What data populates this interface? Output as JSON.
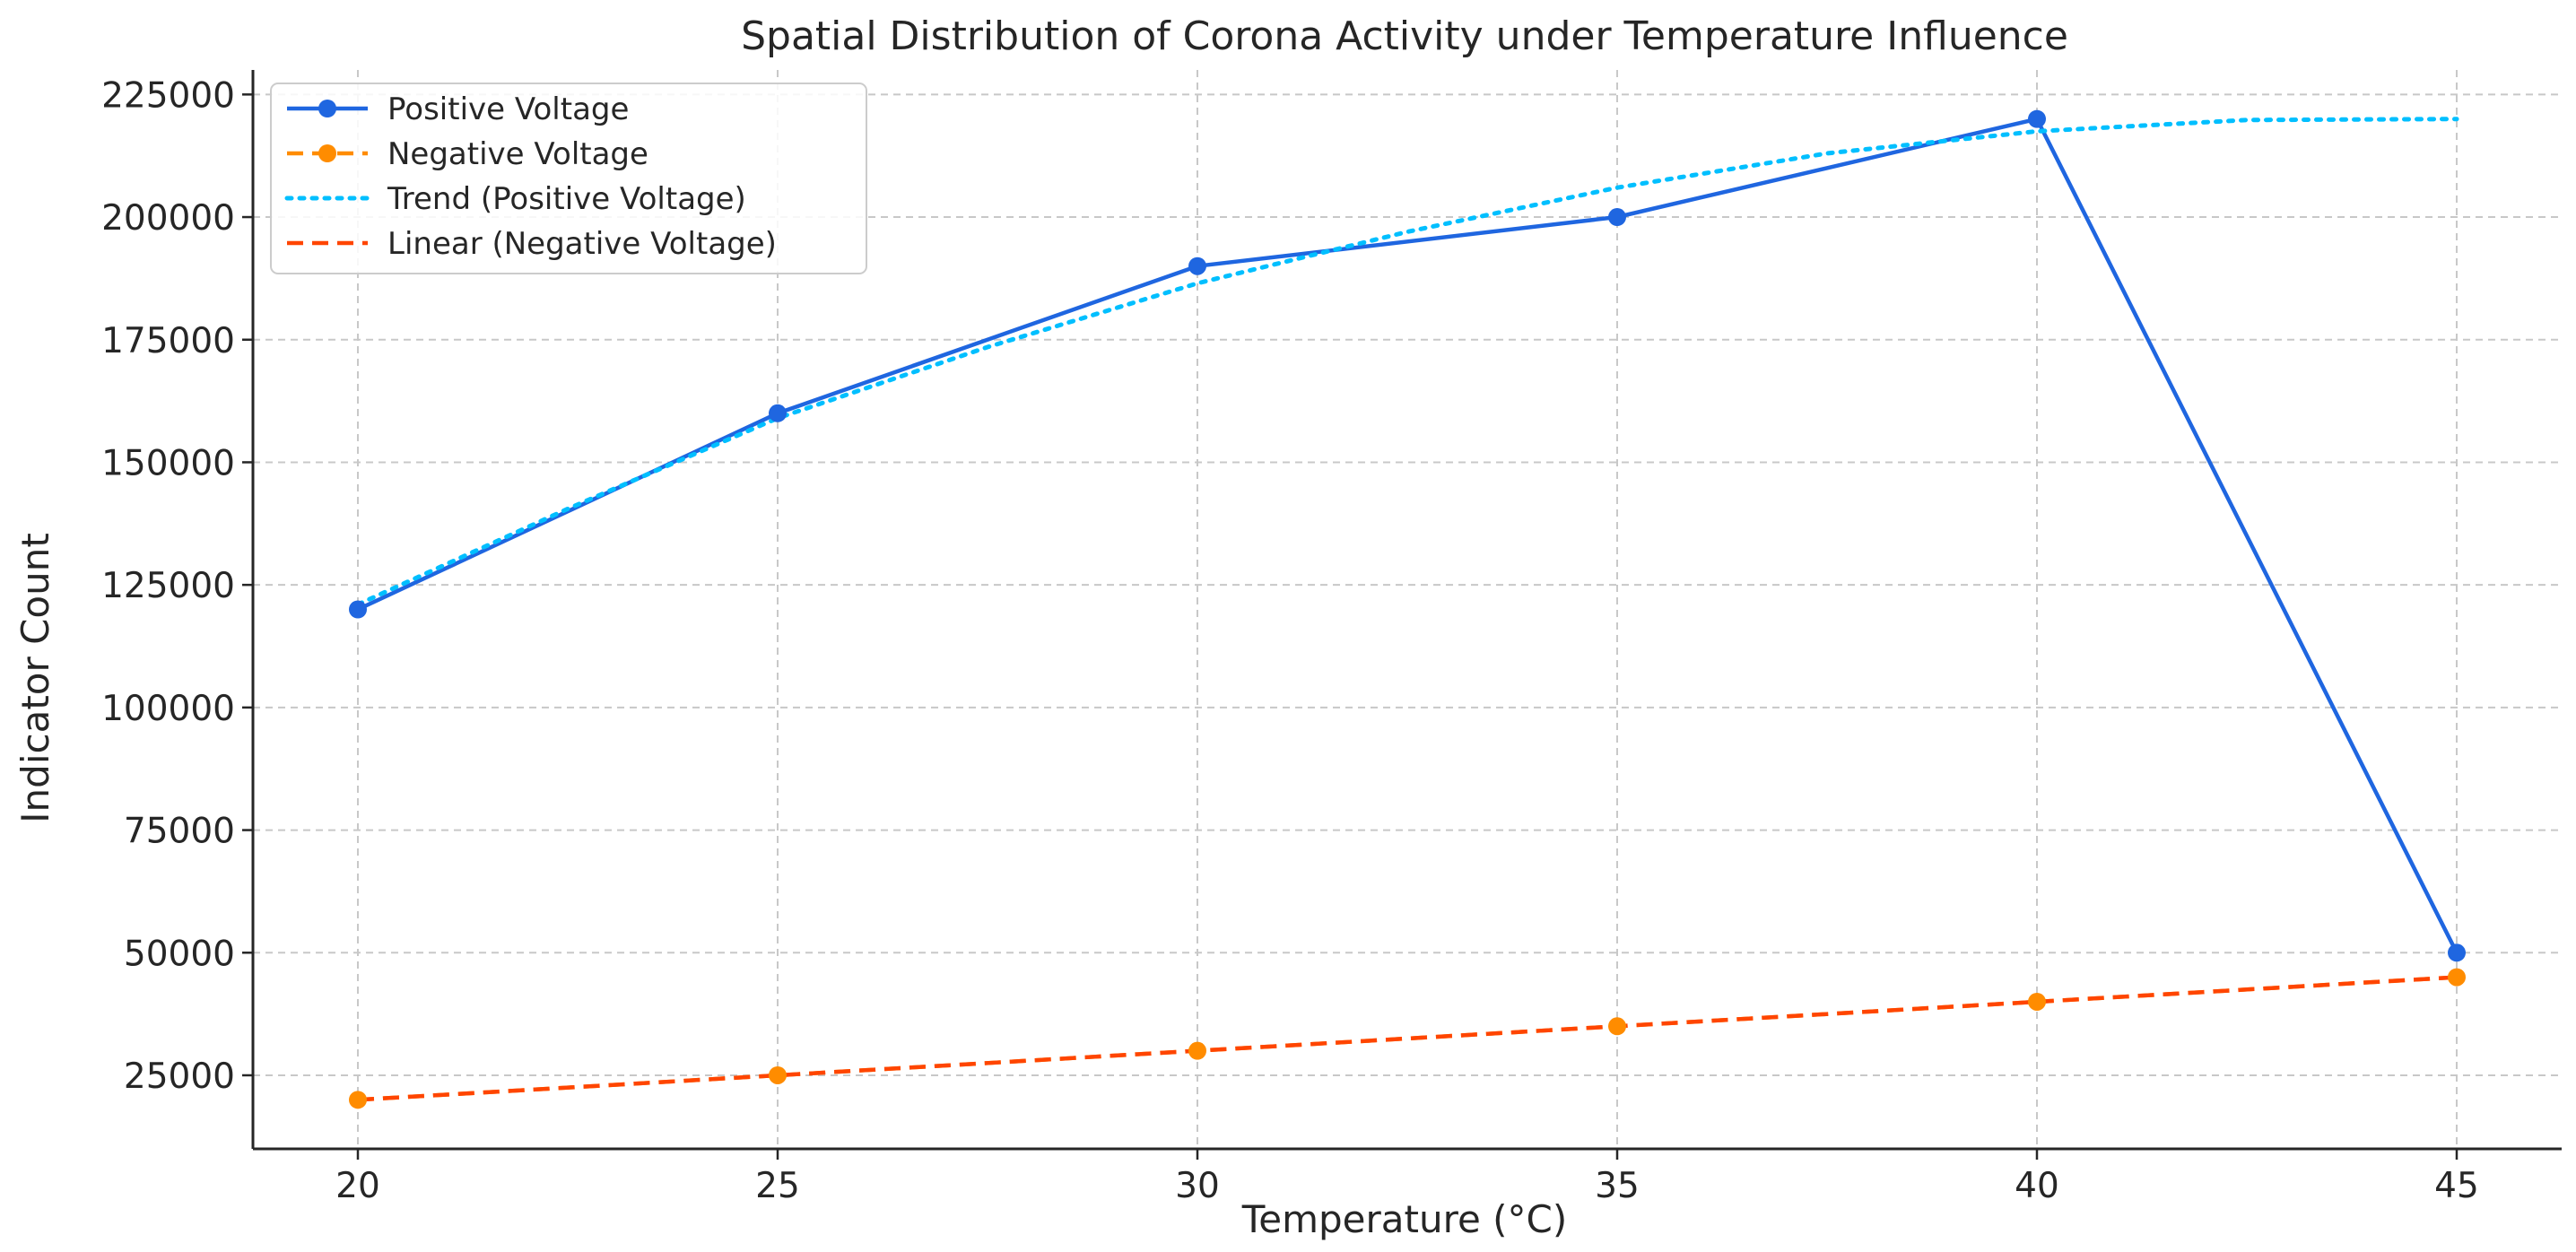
{
  "chart_data": {
    "type": "line",
    "title": "Spatial Distribution of Corona Activity under Temperature Influence",
    "xlabel": "Temperature (°C)",
    "ylabel": "Indicator Count",
    "x": [
      20,
      25,
      30,
      35,
      40,
      45
    ],
    "xlim": [
      18.75,
      46.25
    ],
    "ylim": [
      10000,
      230000
    ],
    "xticks": [
      "20",
      "25",
      "30",
      "35",
      "40",
      "45"
    ],
    "yticks": [
      "25000",
      "50000",
      "75000",
      "100000",
      "125000",
      "150000",
      "175000",
      "200000",
      "225000"
    ],
    "grid": true,
    "legend_position": "top-left",
    "series": [
      {
        "name": "Positive Voltage",
        "values": [
          120000,
          160000,
          190000,
          200000,
          220000,
          50000
        ],
        "color": "#1f66e0",
        "style": "solid",
        "markers": true
      },
      {
        "name": "Negative Voltage",
        "values": [
          20000,
          25000,
          30000,
          35000,
          40000,
          45000
        ],
        "color": "#ff8c00",
        "style": "dashed",
        "markers": true
      },
      {
        "name": "Trend (Positive Voltage)",
        "x": [
          20,
          22.5,
          25,
          27.5,
          30,
          32.5,
          35,
          37.5,
          40,
          42.5,
          45
        ],
        "values": [
          121000,
          140500,
          159000,
          173500,
          186500,
          197000,
          206000,
          213000,
          217500,
          219800,
          220000
        ],
        "color": "#00bfff",
        "style": "dotted",
        "markers": false
      },
      {
        "name": "Linear (Negative Voltage)",
        "values": [
          20000,
          25000,
          30000,
          35000,
          40000,
          45000
        ],
        "color": "#ff4500",
        "style": "dashed",
        "markers": false
      }
    ]
  }
}
